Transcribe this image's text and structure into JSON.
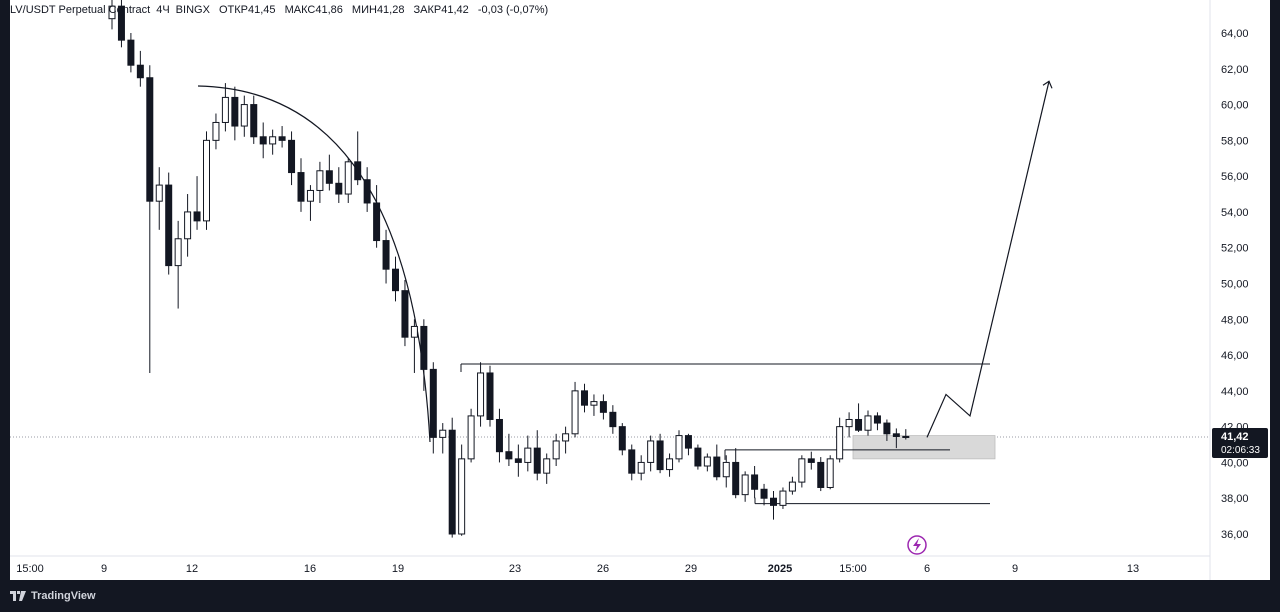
{
  "legend": {
    "symbol": "LV/USDT Perpetual Contract",
    "timeframe": "4Ч",
    "exchange": "BINGX",
    "open_label": "ОТКР",
    "open": "41,45",
    "high_label": "МАКС",
    "high": "41,86",
    "low_label": "МИН",
    "low": "41,28",
    "close_label": "ЗАКР",
    "close": "41,42",
    "change": "-0,03 (-0,07%)"
  },
  "price_axis": {
    "ticks": [
      "64,00",
      "62,00",
      "60,00",
      "58,00",
      "56,00",
      "54,00",
      "52,00",
      "50,00",
      "48,00",
      "46,00",
      "44,00",
      "42,00",
      "40,00",
      "38,00",
      "36,00"
    ],
    "last_price": "41,42",
    "countdown": "02:06:33"
  },
  "time_axis": {
    "ticks": [
      "15:00",
      "9",
      "12",
      "16",
      "19",
      "23",
      "26",
      "29",
      "2025",
      "15:00",
      "6",
      "9",
      "13"
    ]
  },
  "footer": {
    "brand": "TradingView"
  },
  "colors": {
    "candle": "#131722",
    "background": "#ffffff",
    "frame": "#131722",
    "zone": "#d9d9d9",
    "marker": "#9c27b0"
  },
  "chart_data": {
    "type": "candlestick",
    "series": [
      {
        "values": [
          [
            64.8,
            66.0,
            64.2,
            65.5
          ],
          [
            65.5,
            66.0,
            63.2,
            63.6
          ],
          [
            63.6,
            64.0,
            61.8,
            62.2
          ],
          [
            62.2,
            63.0,
            61.0,
            61.5
          ],
          [
            61.5,
            62.2,
            45.0,
            54.6
          ],
          [
            54.6,
            56.5,
            53.0,
            55.5
          ],
          [
            55.5,
            56.2,
            50.5,
            51.0
          ],
          [
            51.0,
            53.5,
            48.6,
            52.5
          ],
          [
            52.5,
            55.0,
            51.5,
            54.0
          ],
          [
            54.0,
            56.0,
            53.0,
            53.5
          ],
          [
            53.5,
            58.5,
            53.0,
            58.0
          ],
          [
            58.0,
            59.5,
            57.5,
            59.0
          ],
          [
            59.0,
            61.2,
            58.5,
            60.4
          ],
          [
            60.4,
            61.0,
            58.0,
            58.8
          ],
          [
            58.8,
            60.5,
            58.2,
            60.0
          ],
          [
            60.0,
            60.5,
            57.8,
            58.2
          ],
          [
            58.2,
            59.0,
            57.0,
            57.8
          ],
          [
            57.8,
            58.6,
            57.2,
            58.2
          ],
          [
            58.2,
            58.8,
            57.6,
            58.0
          ],
          [
            58.0,
            58.5,
            55.5,
            56.2
          ],
          [
            56.2,
            57.0,
            54.0,
            54.6
          ],
          [
            54.6,
            55.5,
            53.5,
            55.2
          ],
          [
            55.2,
            56.8,
            54.5,
            56.3
          ],
          [
            56.3,
            57.2,
            55.2,
            55.6
          ],
          [
            55.6,
            56.5,
            54.5,
            55.0
          ],
          [
            55.0,
            57.0,
            54.5,
            56.8
          ],
          [
            56.8,
            58.5,
            55.5,
            55.8
          ],
          [
            55.8,
            56.5,
            54.0,
            54.5
          ],
          [
            54.5,
            55.5,
            52.0,
            52.4
          ],
          [
            52.4,
            53.0,
            50.0,
            50.8
          ],
          [
            50.8,
            51.5,
            49.0,
            49.6
          ],
          [
            49.6,
            50.2,
            46.5,
            47.0
          ],
          [
            47.0,
            48.0,
            45.0,
            47.6
          ],
          [
            47.6,
            48.0,
            44.0,
            45.2
          ],
          [
            45.2,
            45.6,
            40.5,
            41.4
          ],
          [
            41.4,
            42.2,
            40.5,
            41.8
          ],
          [
            41.8,
            42.5,
            35.8,
            36.0
          ],
          [
            36.0,
            41.0,
            35.9,
            40.2
          ],
          [
            40.2,
            43.0,
            40.0,
            42.6
          ],
          [
            42.6,
            45.6,
            42.0,
            45.0
          ],
          [
            45.0,
            45.4,
            42.0,
            42.4
          ],
          [
            42.4,
            43.0,
            40.0,
            40.6
          ],
          [
            40.6,
            41.6,
            39.8,
            40.2
          ],
          [
            40.2,
            41.0,
            39.2,
            40.0
          ],
          [
            40.0,
            41.5,
            39.5,
            40.8
          ],
          [
            40.8,
            41.8,
            39.0,
            39.4
          ],
          [
            39.4,
            40.5,
            38.8,
            40.2
          ],
          [
            40.2,
            41.6,
            39.8,
            41.2
          ],
          [
            41.2,
            42.0,
            40.5,
            41.6
          ],
          [
            41.6,
            44.5,
            41.4,
            44.0
          ],
          [
            44.0,
            44.4,
            42.8,
            43.2
          ],
          [
            43.2,
            43.8,
            42.6,
            43.4
          ],
          [
            43.4,
            43.8,
            42.4,
            42.8
          ],
          [
            42.8,
            43.2,
            41.6,
            42.0
          ],
          [
            42.0,
            42.2,
            40.4,
            40.7
          ],
          [
            40.7,
            41.0,
            39.0,
            39.4
          ],
          [
            39.4,
            40.4,
            39.0,
            40.0
          ],
          [
            40.0,
            41.5,
            39.5,
            41.2
          ],
          [
            41.2,
            41.6,
            39.4,
            39.6
          ],
          [
            39.6,
            40.5,
            39.2,
            40.2
          ],
          [
            40.2,
            41.8,
            40.0,
            41.5
          ],
          [
            41.5,
            41.6,
            40.4,
            40.8
          ],
          [
            40.8,
            41.0,
            39.6,
            39.8
          ],
          [
            39.8,
            40.5,
            39.5,
            40.3
          ],
          [
            40.3,
            41.0,
            39.0,
            39.2
          ],
          [
            39.2,
            40.4,
            38.6,
            40.0
          ],
          [
            40.0,
            40.8,
            38.0,
            38.2
          ],
          [
            38.2,
            39.5,
            37.8,
            39.3
          ],
          [
            39.3,
            39.8,
            38.0,
            38.5
          ],
          [
            38.5,
            38.8,
            37.6,
            38.0
          ],
          [
            38.0,
            38.4,
            36.8,
            37.6
          ],
          [
            37.6,
            38.6,
            37.4,
            38.4
          ],
          [
            38.4,
            39.2,
            38.2,
            38.9
          ],
          [
            38.9,
            40.4,
            38.6,
            40.2
          ],
          [
            40.2,
            40.6,
            39.6,
            40.0
          ],
          [
            40.0,
            40.3,
            38.4,
            38.6
          ],
          [
            38.6,
            40.4,
            38.5,
            40.2
          ],
          [
            40.2,
            42.5,
            40.0,
            42.0
          ],
          [
            42.0,
            42.8,
            41.4,
            42.4
          ],
          [
            42.4,
            43.3,
            41.7,
            41.8
          ],
          [
            41.8,
            42.9,
            41.5,
            42.6
          ],
          [
            42.6,
            42.8,
            41.8,
            42.2
          ],
          [
            42.2,
            42.4,
            41.2,
            41.6
          ],
          [
            41.6,
            41.9,
            40.8,
            41.45
          ],
          [
            41.45,
            41.86,
            41.28,
            41.42
          ]
        ]
      }
    ],
    "ylim": [
      35.2,
      66.0
    ],
    "x_ticks": [
      "15:00",
      "9",
      "12",
      "16",
      "19",
      "23",
      "26",
      "29",
      "2025",
      "15:00",
      "6",
      "9",
      "13"
    ],
    "y_ticks": [
      36,
      38,
      40,
      42,
      44,
      46,
      48,
      50,
      52,
      54,
      56,
      58,
      60,
      62,
      64
    ],
    "last_price": 41.42,
    "annotations": {
      "resistance": 45.5,
      "support_upper": 40.7,
      "support_lower": 37.7,
      "demand_zone": [
        40.2,
        41.5
      ],
      "projection_path": [
        41.4,
        43.8,
        42.6,
        61.3
      ]
    }
  }
}
